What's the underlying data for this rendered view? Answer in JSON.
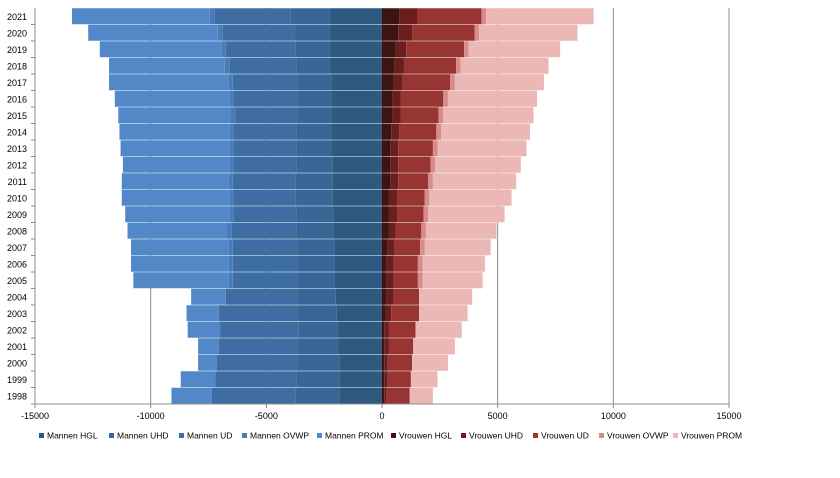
{
  "chart_data": {
    "type": "bar",
    "orientation": "horizontal",
    "stacked": true,
    "grid": "vertical major gridlines",
    "legend_position": "bottom",
    "title": "",
    "xlabel": "",
    "ylabel": "",
    "xlim": [
      -15000,
      15000
    ],
    "x_ticks": [
      "-15000",
      "-10000",
      "-5000",
      "0",
      "5000",
      "10000",
      "15000"
    ],
    "categories": [
      "1998",
      "1999",
      "2000",
      "2001",
      "2002",
      "2003",
      "2004",
      "2005",
      "2006",
      "2007",
      "2008",
      "2009",
      "2010",
      "2011",
      "2012",
      "2013",
      "2014",
      "2015",
      "2016",
      "2017",
      "2018",
      "2019",
      "2020",
      "2021"
    ],
    "series": [
      {
        "name": "Mannen HGL",
        "color": "#2e5a82",
        "values": [
          -1850,
          -1850,
          -1850,
          -1900,
          -1900,
          -1950,
          -2000,
          -2050,
          -2050,
          -2050,
          -2100,
          -2100,
          -2150,
          -2150,
          -2150,
          -2200,
          -2200,
          -2200,
          -2200,
          -2200,
          -2250,
          -2250,
          -2250,
          -2250
        ]
      },
      {
        "name": "Mannen UHD",
        "color": "#386697",
        "values": [
          -1900,
          -1850,
          -1800,
          -1750,
          -1700,
          -1700,
          -1650,
          -1600,
          -1600,
          -1600,
          -1600,
          -1600,
          -1600,
          -1600,
          -1550,
          -1500,
          -1500,
          -1450,
          -1450,
          -1450,
          -1450,
          -1500,
          -1550,
          -1700
        ]
      },
      {
        "name": "Mannen UD",
        "color": "#3e6da3",
        "values": [
          -3600,
          -3500,
          -3500,
          -3400,
          -3400,
          -3400,
          -3100,
          -2800,
          -2800,
          -2800,
          -2800,
          -2700,
          -2650,
          -2700,
          -2700,
          -2700,
          -2700,
          -2700,
          -2750,
          -2800,
          -2900,
          -3000,
          -3100,
          -3300
        ]
      },
      {
        "name": "Mannen OVWP",
        "color": "#4a7cb7",
        "values": [
          0,
          0,
          0,
          0,
          0,
          0,
          0,
          -200,
          -200,
          -200,
          -200,
          -200,
          -200,
          -200,
          -200,
          -200,
          -200,
          -200,
          -200,
          -200,
          -200,
          -200,
          -200,
          -200
        ]
      },
      {
        "name": "Mannen PROM",
        "color": "#5388c8",
        "values": [
          -1750,
          -1500,
          -800,
          -900,
          -1400,
          -1400,
          -1500,
          -4100,
          -4200,
          -4200,
          -4300,
          -4500,
          -4650,
          -4600,
          -4600,
          -4700,
          -4750,
          -4850,
          -4950,
          -5150,
          -5000,
          -5250,
          -5600,
          -5950
        ]
      },
      {
        "name": "Vrouwen HGL",
        "color": "#3c1512",
        "values": [
          100,
          100,
          100,
          100,
          100,
          150,
          200,
          200,
          200,
          250,
          300,
          300,
          300,
          350,
          350,
          350,
          400,
          450,
          450,
          500,
          550,
          600,
          700,
          750
        ]
      },
      {
        "name": "Vrouwen UHD",
        "color": "#6b1f1d",
        "values": [
          100,
          150,
          150,
          200,
          200,
          250,
          300,
          300,
          300,
          300,
          300,
          350,
          350,
          350,
          350,
          350,
          350,
          350,
          350,
          400,
          400,
          450,
          600,
          800
        ]
      },
      {
        "name": "Vrouwen UD",
        "color": "#983532",
        "values": [
          1000,
          1000,
          1050,
          1050,
          1150,
          1200,
          1100,
          1050,
          1050,
          1100,
          1100,
          1150,
          1200,
          1300,
          1400,
          1500,
          1600,
          1650,
          1850,
          2050,
          2250,
          2500,
          2700,
          2750
        ]
      },
      {
        "name": "Vrouwen OVWP",
        "color": "#d88c8a",
        "values": [
          0,
          0,
          0,
          0,
          0,
          0,
          0,
          200,
          200,
          200,
          200,
          200,
          200,
          200,
          200,
          200,
          200,
          200,
          200,
          200,
          200,
          200,
          200,
          200
        ]
      },
      {
        "name": "Vrouwen PROM",
        "color": "#ebb8b6",
        "values": [
          1000,
          1150,
          1550,
          1800,
          2000,
          2100,
          2300,
          2600,
          2700,
          2850,
          3050,
          3300,
          3550,
          3600,
          3700,
          3850,
          3850,
          3900,
          3850,
          3850,
          3800,
          3950,
          4250,
          4650
        ]
      }
    ]
  }
}
